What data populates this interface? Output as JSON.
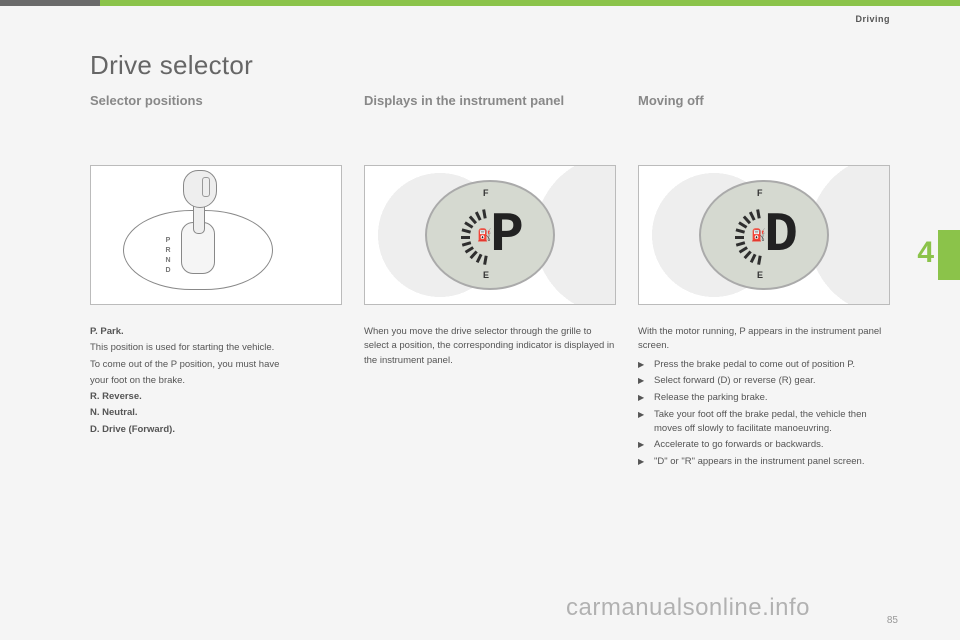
{
  "header": {
    "section": "Driving"
  },
  "page": {
    "title": "Drive selector",
    "chapter_number": "4",
    "page_number": "85",
    "watermark": "carmanualsonline.info"
  },
  "columns": {
    "c1": {
      "heading": "Selector positions",
      "shifter_positions": "P\nR\nN\nD",
      "body": [
        {
          "bold": true,
          "text": "P."
        },
        {
          "bold": true,
          "text": " Park."
        },
        {
          "text": "This position is used for starting the vehicle."
        },
        {
          "text": "To come out of the P position, you must have"
        },
        {
          "text": "your foot on the brake."
        },
        {
          "bold": true,
          "text": "R. Reverse."
        },
        {
          "bold": true,
          "text": "N. Neutral."
        },
        {
          "bold": true,
          "text": "D. Drive (Forward)."
        }
      ]
    },
    "c2": {
      "heading": "Displays in the instrument panel",
      "lcd_letter": "P",
      "lcd_top": "F",
      "lcd_bottom": "E",
      "body": "When you move the drive selector through the grille to select a position, the corresponding indicator is displayed in the instrument panel."
    },
    "c3": {
      "heading": "Moving off",
      "lcd_letter": "D",
      "lcd_top": "F",
      "lcd_bottom": "E",
      "intro": "With the motor running, P appears in the instrument panel screen.",
      "steps": [
        "Press the brake pedal to come out of position P.",
        "Select forward (D) or reverse (R) gear.",
        "Release the parking brake.",
        "Take your foot off the brake pedal, the vehicle then moves off slowly to facilitate manoeuvring.",
        "Accelerate to go forwards or backwards.",
        "\"D\" or \"R\" appears in the instrument panel screen."
      ]
    }
  },
  "style": {
    "accent_color": "#8BC34A",
    "dial_bg": "#d5d9d0",
    "text_color": "#555"
  }
}
